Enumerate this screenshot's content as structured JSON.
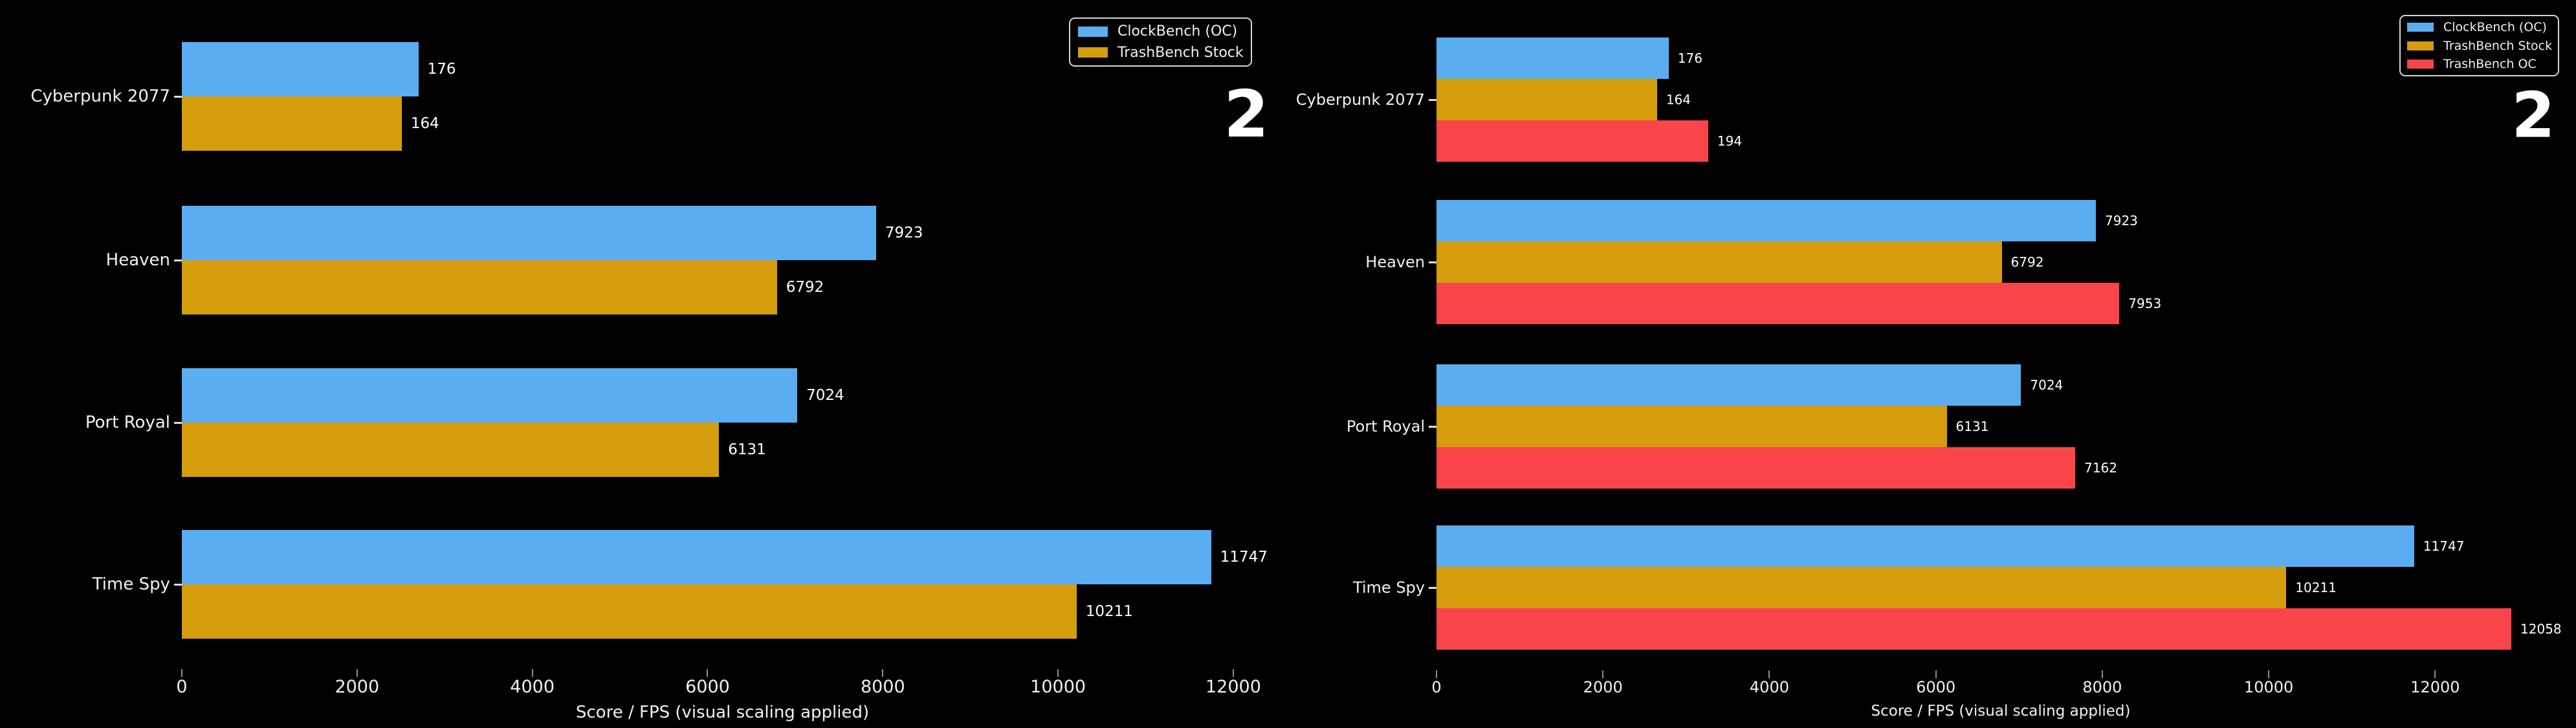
{
  "figure": {
    "background": "#000000",
    "text_color": "#f1f1f1"
  },
  "chart_data": [
    {
      "type": "bar",
      "orientation": "horizontal",
      "panel": "left",
      "xlabel": "Score / FPS (visual scaling applied)",
      "categories": [
        "Cyberpunk 2077",
        "Heaven",
        "Port Royal",
        "Time Spy"
      ],
      "series": [
        {
          "name": "ClockBench (OC)",
          "color": "#5aadf0",
          "values": [
            176,
            7923,
            7024,
            11747
          ],
          "visual_lengths": [
            2700,
            7923,
            7024,
            11747
          ]
        },
        {
          "name": "TrashBench Stock",
          "color": "#d59d0c",
          "values": [
            164,
            6792,
            6131,
            10211
          ],
          "visual_lengths": [
            2510,
            6792,
            6131,
            10211
          ]
        }
      ],
      "xlim": [
        0,
        12340
      ],
      "xticks": [
        0,
        2000,
        4000,
        6000,
        8000,
        10000,
        12000
      ],
      "grid": false,
      "value_labels": true,
      "legend_position": "upper right",
      "annotation": "2"
    },
    {
      "type": "bar",
      "orientation": "horizontal",
      "panel": "right",
      "xlabel": "Score / FPS (visual scaling applied)",
      "categories": [
        "Cyberpunk 2077",
        "Heaven",
        "Port Royal",
        "Time Spy"
      ],
      "series": [
        {
          "name": "ClockBench (OC)",
          "color": "#5aadf0",
          "values": [
            176,
            7923,
            7024,
            11747
          ],
          "visual_lengths": [
            2790,
            7923,
            7024,
            11747
          ]
        },
        {
          "name": "TrashBench Stock",
          "color": "#d59d0c",
          "values": [
            164,
            6792,
            6131,
            10211
          ],
          "visual_lengths": [
            2650,
            6792,
            6131,
            10211
          ]
        },
        {
          "name": "TrashBench OC",
          "color": "#f9444a",
          "values": [
            194,
            7953,
            7162,
            12058
          ],
          "visual_lengths": [
            3265,
            8205,
            7675,
            12915
          ]
        }
      ],
      "xlim": [
        0,
        13560
      ],
      "xticks": [
        0,
        2000,
        4000,
        6000,
        8000,
        10000,
        12000
      ],
      "grid": false,
      "value_labels": true,
      "legend_position": "upper right",
      "annotation": "2"
    }
  ]
}
